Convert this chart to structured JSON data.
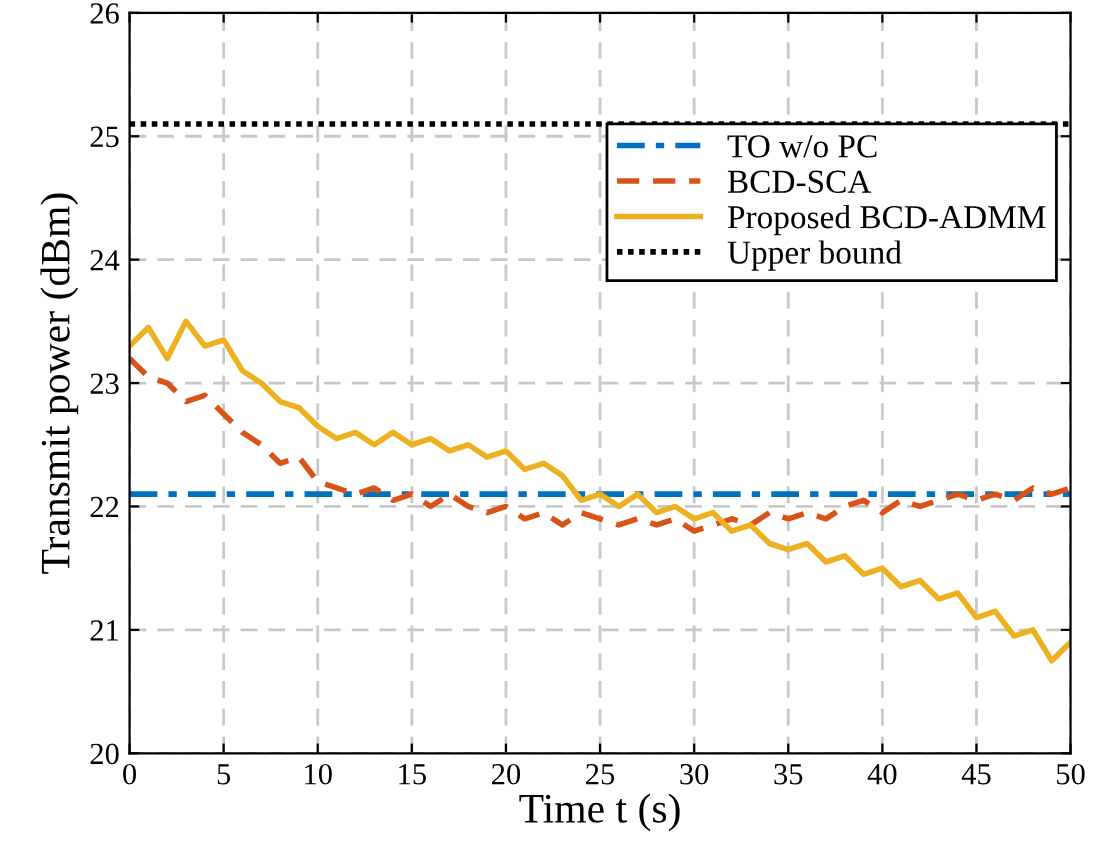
{
  "chart_data": {
    "type": "line",
    "xlabel": "Time t (s)",
    "ylabel": "Transmit power (dBm)",
    "x": [
      0,
      1,
      2,
      3,
      4,
      5,
      6,
      7,
      8,
      9,
      10,
      11,
      12,
      13,
      14,
      15,
      16,
      17,
      18,
      19,
      20,
      21,
      22,
      23,
      24,
      25,
      26,
      27,
      28,
      29,
      30,
      31,
      32,
      33,
      34,
      35,
      36,
      37,
      38,
      39,
      40,
      41,
      42,
      43,
      44,
      45,
      46,
      47,
      48,
      49,
      50
    ],
    "xlim": [
      0,
      50
    ],
    "xticks": [
      0,
      5,
      10,
      15,
      20,
      25,
      30,
      35,
      40,
      45,
      50
    ],
    "ylim": [
      20,
      26
    ],
    "yticks": [
      20,
      21,
      22,
      23,
      24,
      25,
      26
    ],
    "grid": true,
    "legend": "top right",
    "series": [
      {
        "name": "TO w/o PC",
        "color": "#0072bd",
        "line_style": "dashdot",
        "values": [
          22.1,
          22.1,
          22.1,
          22.1,
          22.1,
          22.1,
          22.1,
          22.1,
          22.1,
          22.1,
          22.1,
          22.1,
          22.1,
          22.1,
          22.1,
          22.1,
          22.1,
          22.1,
          22.1,
          22.1,
          22.1,
          22.1,
          22.1,
          22.1,
          22.1,
          22.1,
          22.1,
          22.1,
          22.1,
          22.1,
          22.1,
          22.1,
          22.1,
          22.1,
          22.1,
          22.1,
          22.1,
          22.1,
          22.1,
          22.1,
          22.1,
          22.1,
          22.1,
          22.1,
          22.1,
          22.1,
          22.1,
          22.1,
          22.1,
          22.1,
          22.1
        ]
      },
      {
        "name": "BCD-SCA",
        "color": "#d95319",
        "line_style": "dashed",
        "values": [
          23.2,
          23.05,
          23.0,
          22.85,
          22.9,
          22.75,
          22.6,
          22.5,
          22.35,
          22.4,
          22.2,
          22.15,
          22.1,
          22.15,
          22.05,
          22.1,
          22.0,
          22.1,
          22.0,
          21.95,
          22.0,
          21.9,
          21.95,
          21.85,
          21.95,
          21.9,
          21.85,
          21.9,
          21.85,
          21.9,
          21.8,
          21.85,
          21.9,
          21.85,
          21.95,
          21.9,
          21.95,
          21.9,
          22.0,
          22.05,
          21.95,
          22.05,
          22.0,
          22.05,
          22.1,
          22.05,
          22.1,
          22.05,
          22.15,
          22.1,
          22.15
        ]
      },
      {
        "name": "Proposed BCD-ADMM",
        "color": "#edb120",
        "line_style": "solid",
        "values": [
          23.3,
          23.45,
          23.2,
          23.5,
          23.3,
          23.35,
          23.1,
          23.0,
          22.85,
          22.8,
          22.65,
          22.55,
          22.6,
          22.5,
          22.6,
          22.5,
          22.55,
          22.45,
          22.5,
          22.4,
          22.45,
          22.3,
          22.35,
          22.25,
          22.05,
          22.1,
          22.0,
          22.1,
          21.95,
          22.0,
          21.9,
          21.95,
          21.8,
          21.85,
          21.7,
          21.65,
          21.7,
          21.55,
          21.6,
          21.45,
          21.5,
          21.35,
          21.4,
          21.25,
          21.3,
          21.1,
          21.15,
          20.95,
          21.0,
          20.75,
          20.9
        ]
      },
      {
        "name": "Upper bound",
        "color": "#000000",
        "line_style": "dotted",
        "values": [
          25.1,
          25.1,
          25.1,
          25.1,
          25.1,
          25.1,
          25.1,
          25.1,
          25.1,
          25.1,
          25.1,
          25.1,
          25.1,
          25.1,
          25.1,
          25.1,
          25.1,
          25.1,
          25.1,
          25.1,
          25.1,
          25.1,
          25.1,
          25.1,
          25.1,
          25.1,
          25.1,
          25.1,
          25.1,
          25.1,
          25.1,
          25.1,
          25.1,
          25.1,
          25.1,
          25.1,
          25.1,
          25.1,
          25.1,
          25.1,
          25.1,
          25.1,
          25.1,
          25.1,
          25.1,
          25.1,
          25.1,
          25.1,
          25.1,
          25.1,
          25.1
        ]
      }
    ]
  }
}
